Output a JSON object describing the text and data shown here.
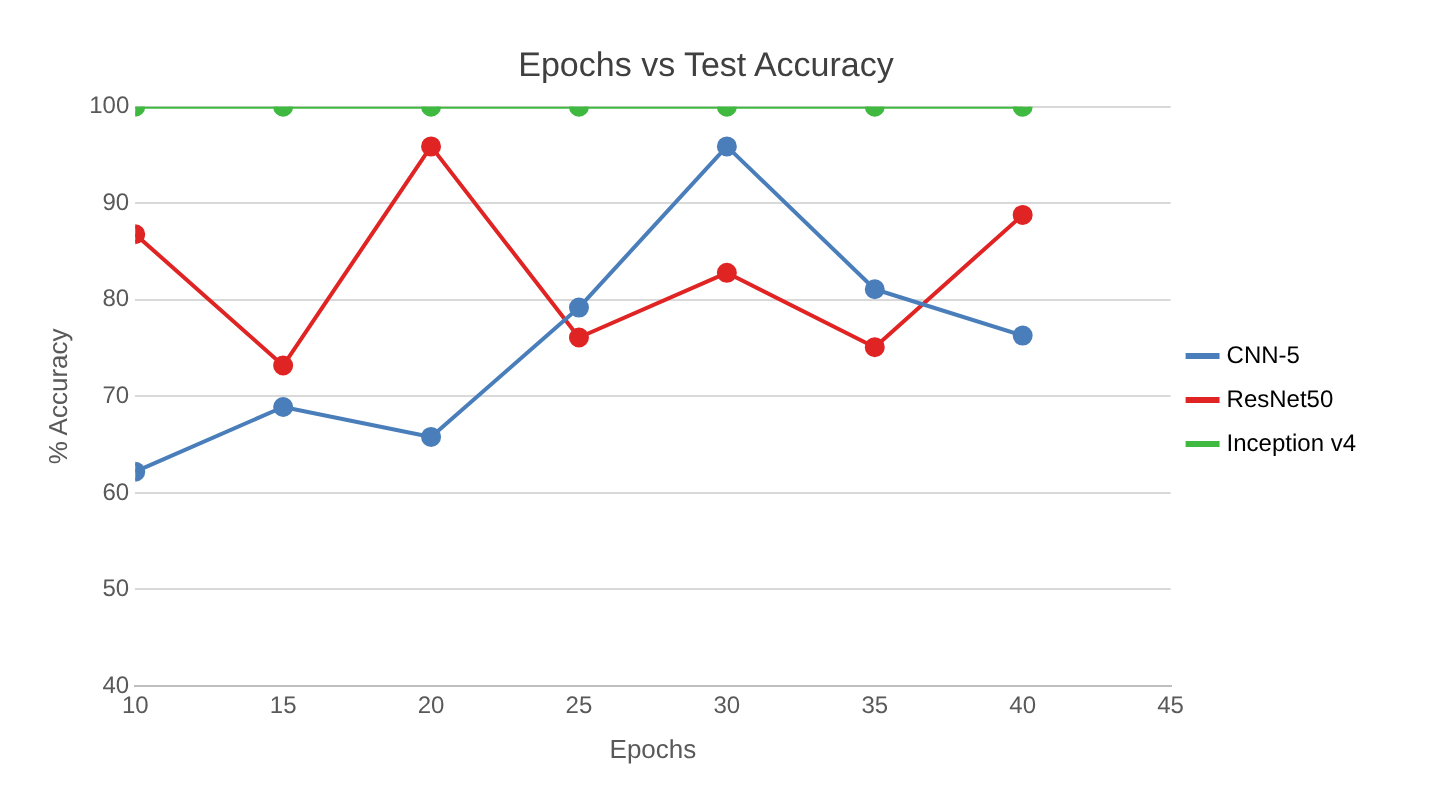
{
  "chart_data": {
    "type": "line",
    "title": "Epochs vs Test Accuracy",
    "xlabel": "Epochs",
    "ylabel": "% Accuracy",
    "x": [
      10,
      15,
      20,
      25,
      30,
      35,
      40
    ],
    "series": [
      {
        "name": "CNN-5",
        "color": "#4a7ebb",
        "values": [
          62.2,
          68.9,
          65.8,
          79.2,
          95.9,
          81.1,
          76.3
        ]
      },
      {
        "name": "ResNet50",
        "color": "#e02424",
        "values": [
          86.8,
          73.2,
          95.9,
          76.1,
          82.8,
          75.1,
          88.8
        ]
      },
      {
        "name": "Inception v4",
        "color": "#3fb93f",
        "values": [
          100,
          100,
          100,
          100,
          100,
          100,
          100
        ]
      }
    ],
    "xlim": [
      10,
      45
    ],
    "xticks": [
      10,
      15,
      20,
      25,
      30,
      35,
      40,
      45
    ],
    "ylim": [
      40,
      100
    ],
    "yticks": [
      40,
      50,
      60,
      70,
      80,
      90,
      100
    ],
    "grid": "y",
    "legend": "right",
    "marker": "circle",
    "line_style": "solid"
  }
}
